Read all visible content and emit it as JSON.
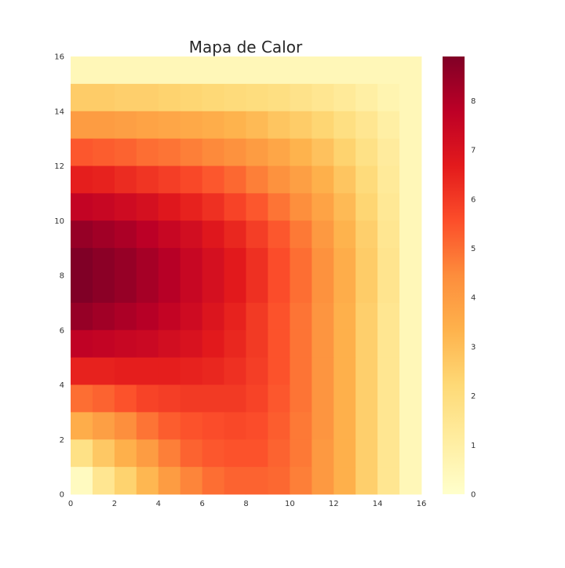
{
  "chart_data": {
    "type": "heatmap",
    "title": "Mapa de Calor",
    "xlabel": "",
    "ylabel": "",
    "xlim": [
      0,
      16
    ],
    "ylim": [
      0,
      16
    ],
    "x_ticks": [
      "0",
      "2",
      "4",
      "6",
      "8",
      "10",
      "12",
      "14",
      "16"
    ],
    "y_ticks": [
      "0",
      "2",
      "4",
      "6",
      "8",
      "10",
      "12",
      "14",
      "16"
    ],
    "colorbar": {
      "min": 0,
      "max": 8.9,
      "ticks": [
        "0",
        "1",
        "2",
        "3",
        "4",
        "5",
        "6",
        "7",
        "8"
      ],
      "colormap": "YlOrRd"
    },
    "colormap_stops": [
      "#ffffcc",
      "#ffeda0",
      "#fed976",
      "#feb24c",
      "#fd8d3c",
      "#fc4e2a",
      "#e31a1c",
      "#bd0026",
      "#800026"
    ],
    "grid": false,
    "rows_top_to_bottom_cols_left_to_right": [
      [
        0.5,
        0.5,
        0.5,
        0.5,
        0.5,
        0.5,
        0.5,
        0.5,
        0.5,
        0.5,
        0.5,
        0.5,
        0.5,
        0.5,
        0.5,
        0.5
      ],
      [
        2.6,
        2.6,
        2.5,
        2.5,
        2.4,
        2.3,
        2.2,
        2.1,
        2.0,
        1.9,
        1.7,
        1.5,
        1.3,
        1.0,
        0.7,
        0.5
      ],
      [
        4.0,
        4.0,
        3.9,
        3.8,
        3.7,
        3.6,
        3.5,
        3.3,
        3.1,
        2.8,
        2.6,
        2.3,
        1.9,
        1.5,
        1.0,
        0.5
      ],
      [
        5.4,
        5.3,
        5.2,
        5.0,
        4.9,
        4.7,
        4.5,
        4.3,
        4.0,
        3.7,
        3.3,
        2.9,
        2.4,
        1.8,
        1.2,
        0.5
      ],
      [
        6.6,
        6.5,
        6.3,
        6.1,
        5.9,
        5.7,
        5.4,
        5.1,
        4.7,
        4.3,
        3.9,
        3.4,
        2.8,
        2.1,
        1.3,
        0.5
      ],
      [
        7.6,
        7.5,
        7.3,
        7.1,
        6.8,
        6.5,
        6.2,
        5.8,
        5.4,
        4.9,
        4.4,
        3.8,
        3.1,
        2.3,
        1.4,
        0.5
      ],
      [
        8.5,
        8.3,
        8.1,
        7.8,
        7.5,
        7.2,
        6.8,
        6.4,
        5.9,
        5.4,
        4.8,
        4.1,
        3.3,
        2.5,
        1.5,
        0.5
      ],
      [
        8.9,
        8.7,
        8.5,
        8.2,
        7.9,
        7.5,
        7.1,
        6.7,
        6.2,
        5.6,
        5.0,
        4.3,
        3.5,
        2.6,
        1.6,
        0.5
      ],
      [
        8.9,
        8.7,
        8.5,
        8.2,
        7.9,
        7.5,
        7.1,
        6.7,
        6.2,
        5.6,
        5.0,
        4.3,
        3.5,
        2.6,
        1.6,
        0.5
      ],
      [
        8.5,
        8.3,
        8.1,
        7.9,
        7.6,
        7.3,
        6.9,
        6.5,
        6.0,
        5.5,
        4.9,
        4.2,
        3.4,
        2.5,
        1.5,
        0.5
      ],
      [
        7.7,
        7.6,
        7.5,
        7.4,
        7.2,
        7.0,
        6.7,
        6.4,
        6.0,
        5.5,
        4.9,
        4.2,
        3.4,
        2.5,
        1.5,
        0.5
      ],
      [
        6.5,
        6.5,
        6.6,
        6.6,
        6.6,
        6.5,
        6.4,
        6.2,
        5.9,
        5.5,
        4.9,
        4.2,
        3.4,
        2.5,
        1.5,
        0.5
      ],
      [
        5.0,
        5.2,
        5.5,
        5.8,
        5.9,
        6.0,
        6.0,
        6.0,
        5.8,
        5.4,
        4.9,
        4.2,
        3.4,
        2.5,
        1.5,
        0.5
      ],
      [
        3.5,
        3.9,
        4.4,
        4.9,
        5.3,
        5.5,
        5.6,
        5.7,
        5.6,
        5.3,
        4.8,
        4.2,
        3.4,
        2.5,
        1.5,
        0.5
      ],
      [
        1.8,
        2.7,
        3.4,
        4.0,
        4.7,
        5.2,
        5.4,
        5.5,
        5.5,
        5.2,
        4.8,
        4.1,
        3.4,
        2.5,
        1.5,
        0.5
      ],
      [
        0.3,
        1.5,
        2.4,
        3.2,
        4.0,
        4.6,
        5.0,
        5.2,
        5.2,
        5.1,
        4.7,
        4.1,
        3.4,
        2.5,
        1.5,
        0.5
      ]
    ]
  }
}
